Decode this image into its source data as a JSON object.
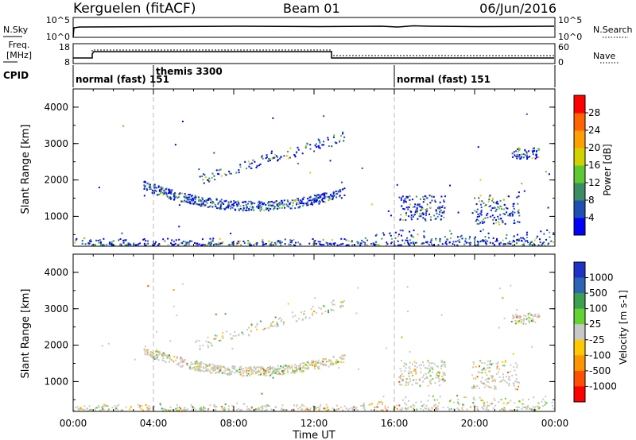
{
  "header": {
    "station": "Kerguelen (fitACF)",
    "beam": "Beam 01",
    "date": "06/Jun/2016"
  },
  "top_panels": {
    "nsky": {
      "label": "N.Sky",
      "ticks": [
        "10^5",
        "10^0"
      ]
    },
    "nsearch": {
      "label": "N.Search",
      "ticks": [
        "10^5",
        "10^0"
      ]
    },
    "freq": {
      "label_line1": "Freq.",
      "label_line2": "[MHz]",
      "ticks": [
        "18",
        "8"
      ]
    },
    "nave": {
      "label": "Nave",
      "ticks": [
        "60",
        "0"
      ]
    },
    "cpid": {
      "label": "CPID",
      "modes": [
        {
          "text": "normal (fast) 151",
          "start_h": 0
        },
        {
          "text": "themis 3300",
          "start_h": 4
        },
        {
          "text": "normal (fast) 151",
          "start_h": 16
        }
      ]
    }
  },
  "x_axis": {
    "title": "Time UT",
    "ticks": [
      "00:00",
      "04:00",
      "08:00",
      "12:00",
      "16:00",
      "20:00",
      "00:00"
    ],
    "tick_hours": [
      0,
      4,
      8,
      12,
      16,
      20,
      24
    ]
  },
  "chart_data": [
    {
      "type": "heatmap",
      "title": "Power",
      "xlabel": "Time UT",
      "ylabel": "Slant Range [km]",
      "x_range_hours": [
        0,
        24
      ],
      "ylim": [
        180,
        4500
      ],
      "y_ticks": [
        1000,
        2000,
        3000,
        4000
      ],
      "colorbar": {
        "label": "Power [dB]",
        "tick_labels": [
          "4",
          "8",
          "12",
          "16",
          "20",
          "24",
          "28"
        ],
        "colors": [
          "#0000ff",
          "#1e50b4",
          "#3c8c64",
          "#5fc832",
          "#d2d200",
          "#ffa000",
          "#ff6400",
          "#ff0000"
        ]
      }
    },
    {
      "type": "heatmap",
      "title": "Velocity",
      "xlabel": "Time UT",
      "ylabel": "Slant Range [km]",
      "x_range_hours": [
        0,
        24
      ],
      "ylim": [
        180,
        4500
      ],
      "y_ticks": [
        1000,
        2000,
        3000,
        4000
      ],
      "colorbar": {
        "label": "Velocity [m s-1]",
        "tick_labels": [
          "1000",
          "500",
          "100",
          "25",
          "-25",
          "-100",
          "-500",
          "-1000"
        ],
        "colors": [
          "#1e32c8",
          "#2d64b4",
          "#3ca050",
          "#64d232",
          "#c8c8c8",
          "#ffc800",
          "#ff9600",
          "#ff5000",
          "#ff0000"
        ]
      }
    }
  ]
}
